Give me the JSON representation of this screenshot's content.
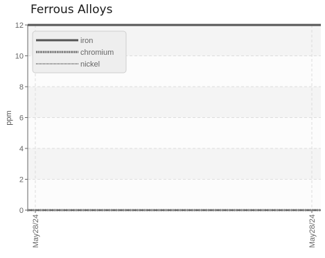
{
  "chart_data": {
    "type": "line",
    "title": "Ferrous Alloys",
    "xlabel": "",
    "ylabel": "ppm",
    "x": [
      "May28/24",
      "May28/24"
    ],
    "x_tick_labels": [
      "May28/24",
      "May28/24"
    ],
    "y_ticks": [
      0,
      2,
      4,
      6,
      8,
      10,
      12
    ],
    "ylim": [
      0,
      12
    ],
    "grid": true,
    "legend_position": "top-left",
    "series": [
      {
        "name": "iron",
        "values": [
          12,
          12
        ],
        "color": "#555555",
        "style": "solid"
      },
      {
        "name": "chromium",
        "values": [
          0,
          0
        ],
        "color": "#555555",
        "style": "dotted-dense"
      },
      {
        "name": "nickel",
        "values": [
          0,
          0
        ],
        "color": "#777777",
        "style": "dotted-light"
      }
    ]
  }
}
